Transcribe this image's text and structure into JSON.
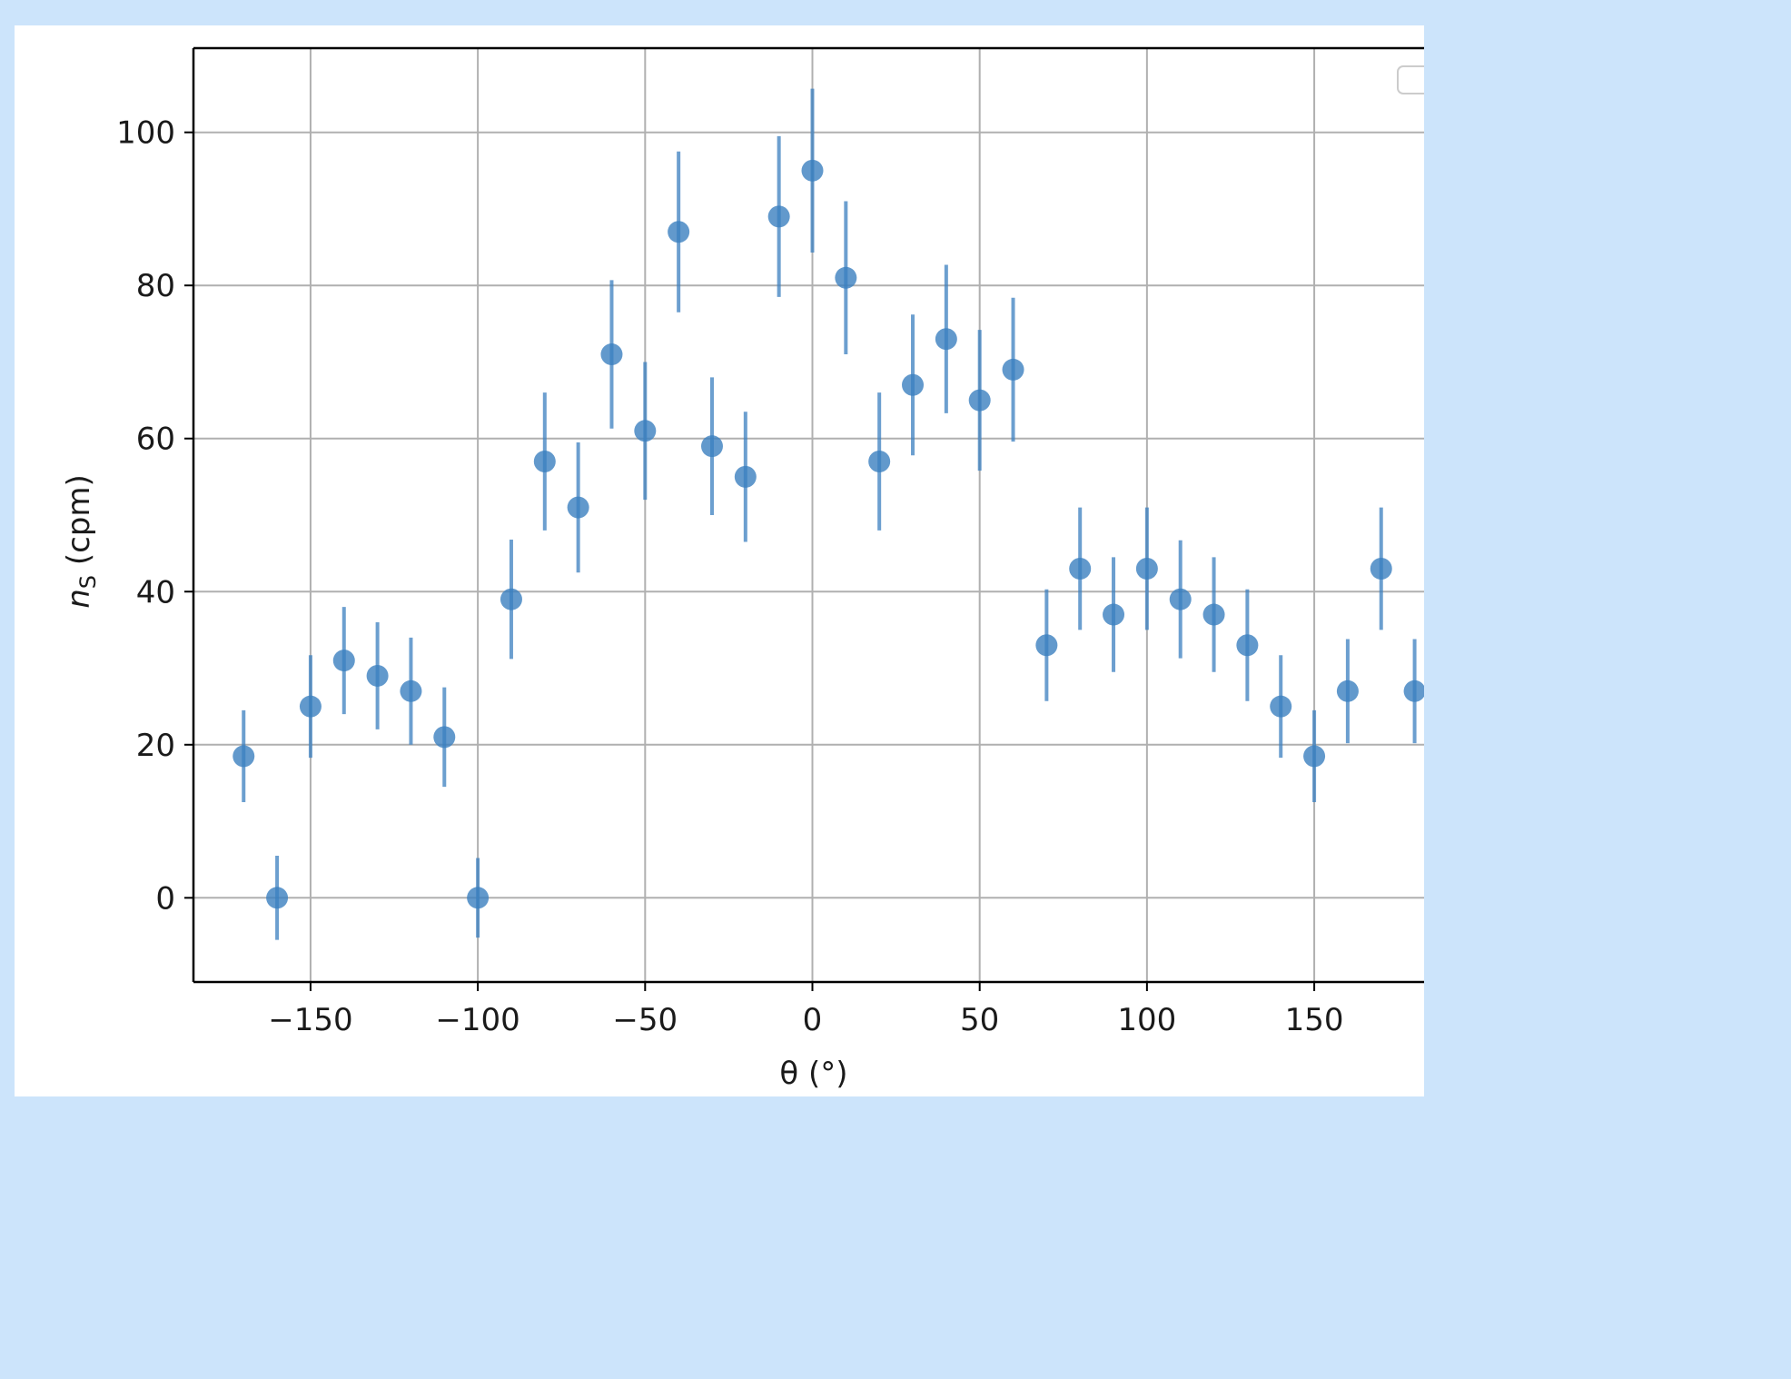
{
  "chart_data": {
    "type": "scatter",
    "title": "",
    "xlabel": "θ (°)",
    "ylabel_main": "n",
    "ylabel_sub": "S",
    "ylabel_unit": " (cpm)",
    "xlim": [
      -185,
      185
    ],
    "ylim": [
      -11,
      111
    ],
    "xticks": [
      -150,
      -100,
      -50,
      0,
      50,
      100,
      150
    ],
    "xtick_labels": [
      "−150",
      "−100",
      "−50",
      "0",
      "50",
      "100",
      "150"
    ],
    "yticks": [
      0,
      20,
      40,
      60,
      80,
      100
    ],
    "ytick_labels": [
      "0",
      "20",
      "40",
      "60",
      "80",
      "100"
    ],
    "grid": true,
    "legend": "top-right",
    "color": "#3b7fbf",
    "series": [
      {
        "x": [
          -170,
          -160,
          -150,
          -140,
          -130,
          -120,
          -110,
          -100,
          -90,
          -80,
          -70,
          -60,
          -50,
          -40,
          -30,
          -20,
          -10,
          0,
          10,
          20,
          30,
          40,
          50,
          60,
          70,
          80,
          90,
          100,
          110,
          120,
          130,
          140,
          150,
          160,
          170,
          180
        ],
        "y": [
          18.5,
          0,
          25,
          31,
          29,
          27,
          21,
          0,
          39,
          57,
          51,
          71,
          61,
          87,
          59,
          55,
          89,
          95,
          81,
          57,
          67,
          73,
          65,
          69,
          33,
          43,
          37,
          43,
          39,
          37,
          33,
          25,
          18.5,
          27,
          43,
          27
        ],
        "yerr": [
          6,
          5.5,
          6.7,
          7,
          7,
          7,
          6.5,
          5.2,
          7.8,
          9,
          8.5,
          9.7,
          9,
          10.5,
          9,
          8.5,
          10.5,
          10.7,
          10,
          9,
          9.2,
          9.7,
          9.2,
          9.4,
          7.3,
          8,
          7.5,
          8,
          7.7,
          7.5,
          7.3,
          6.7,
          6,
          6.8,
          8,
          6.8
        ]
      }
    ]
  }
}
